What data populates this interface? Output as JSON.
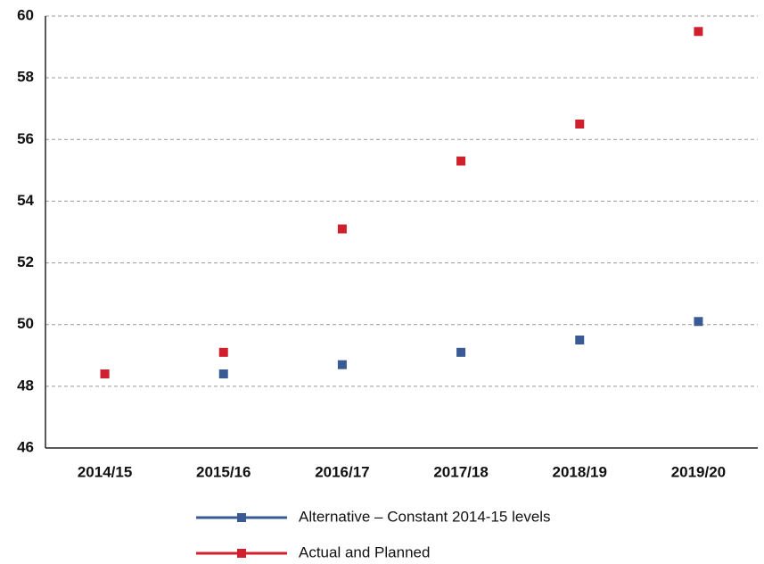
{
  "chart_data": {
    "type": "line",
    "categories": [
      "2014/15",
      "2015/16",
      "2016/17",
      "2017/18",
      "2018/19",
      "2019/20"
    ],
    "series": [
      {
        "name": "Alternative – Constant 2014-15 levels",
        "color": "#3a5a95",
        "values": [
          48.4,
          48.4,
          48.7,
          49.1,
          49.5,
          50.1
        ]
      },
      {
        "name": "Actual and Planned",
        "color": "#d0202e",
        "values": [
          48.4,
          49.1,
          53.1,
          55.3,
          56.5,
          59.5
        ]
      }
    ],
    "ylim": [
      46,
      60
    ],
    "yticks": [
      46,
      48,
      50,
      52,
      54,
      56,
      58,
      60
    ],
    "grid": true,
    "legend": "bottom"
  }
}
